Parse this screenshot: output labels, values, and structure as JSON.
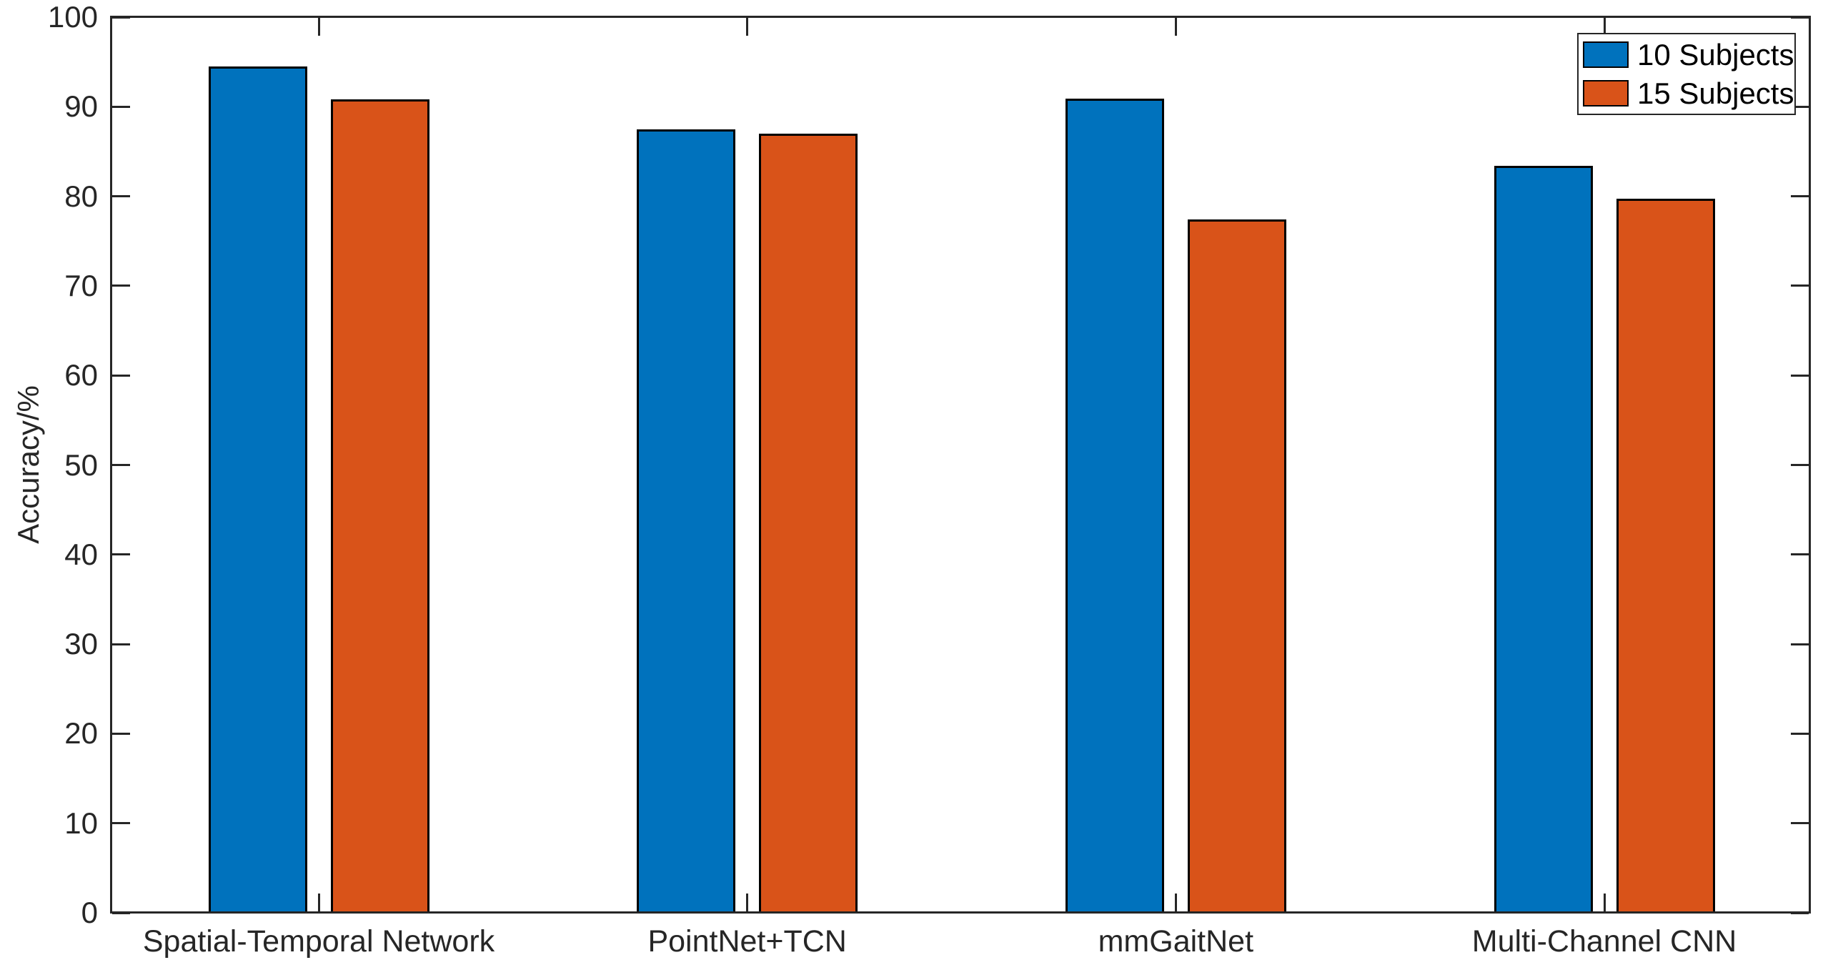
{
  "chart_data": {
    "type": "bar",
    "title": "",
    "categories": [
      "Spatial-Temporal Network",
      "PointNet+TCN",
      "mmGaitNet",
      "Multi-Channel CNN"
    ],
    "series": [
      {
        "name": "10 Subjects",
        "color": "#0072BD",
        "values": [
          94.5,
          87.5,
          90.9,
          83.4
        ]
      },
      {
        "name": "15 Subjects",
        "color": "#D95319",
        "values": [
          90.8,
          87.0,
          77.4,
          79.7
        ]
      }
    ],
    "xlabel": "",
    "ylabel": "Accuracy/%",
    "ylim": [
      0,
      100
    ],
    "yticks": [
      0,
      10,
      20,
      30,
      40,
      50,
      60,
      70,
      80,
      90,
      100
    ],
    "grid": false,
    "legend_position": "top-right",
    "colors": {
      "axis": "#262626",
      "bar_edge": "#000000",
      "background": "#FFFFFF",
      "text": "#262626"
    }
  }
}
